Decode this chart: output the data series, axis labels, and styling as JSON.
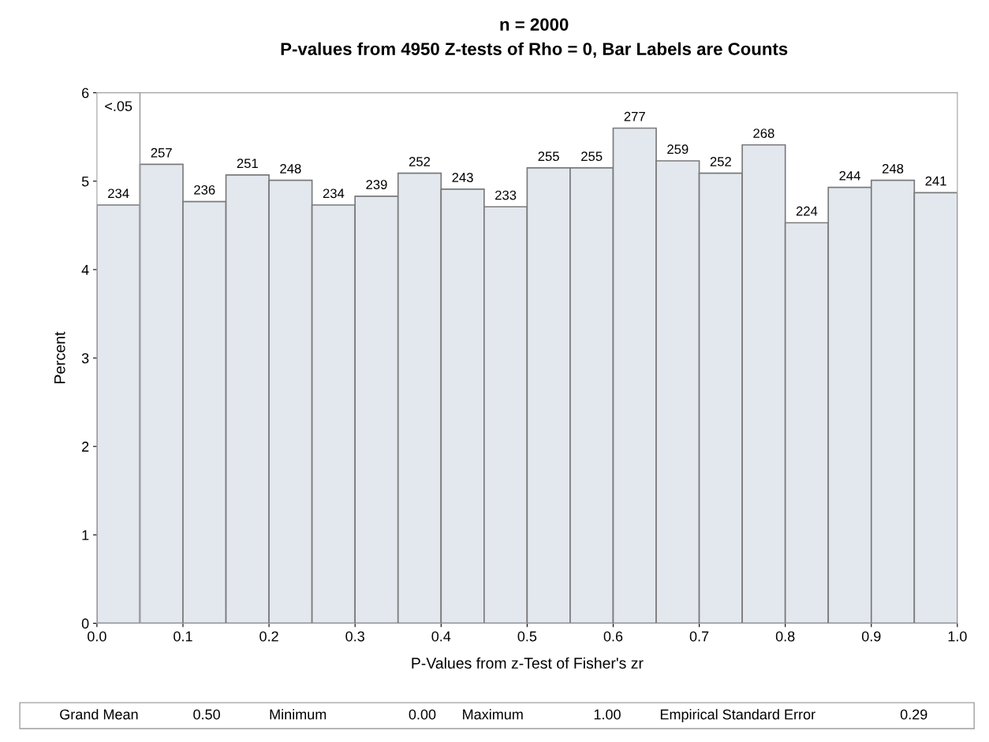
{
  "chart_data": {
    "type": "histogram",
    "title": "n = 2000",
    "subtitle": "P-values from 4950 Z-tests of Rho = 0, Bar Labels are Counts",
    "xlabel": "P-Values from z-Test of Fisher's zr",
    "ylabel": "Percent",
    "bins": [
      0.0,
      0.05,
      0.1,
      0.15,
      0.2,
      0.25,
      0.3,
      0.35,
      0.4,
      0.45,
      0.5,
      0.55,
      0.6,
      0.65,
      0.7,
      0.75,
      0.8,
      0.85,
      0.9,
      0.95,
      1.0
    ],
    "values": [
      4.73,
      5.19,
      4.77,
      5.07,
      5.01,
      4.73,
      4.83,
      5.09,
      4.91,
      4.71,
      5.15,
      5.15,
      5.6,
      5.23,
      5.09,
      5.41,
      4.53,
      4.93,
      5.01,
      4.87
    ],
    "color": "#e3e8ef",
    "xlim": [
      0.0,
      1.0
    ],
    "xticks": [
      {
        "value": 0.0,
        "label": "0.0"
      },
      0.1,
      0.2,
      0.3,
      0.4,
      0.5,
      0.6,
      0.7,
      0.8,
      0.9,
      {
        "value": 1.0,
        "label": "1.0"
      }
    ],
    "ylim": [
      0,
      6
    ],
    "yticks": [
      0,
      1,
      2,
      3,
      4,
      5,
      6
    ],
    "ref_lines": [
      {
        "axis": "x",
        "value": 0.05,
        "label": "<.05",
        "color": "#a0a0a0"
      }
    ],
    "grid": false,
    "annotations": [
      {
        "text": "234",
        "x": 0.025,
        "y": 4.73
      },
      {
        "text": "257",
        "x": 0.075,
        "y": 5.19
      },
      {
        "text": "236",
        "x": 0.125,
        "y": 4.77
      },
      {
        "text": "251",
        "x": 0.175,
        "y": 5.07
      },
      {
        "text": "248",
        "x": 0.225,
        "y": 5.01
      },
      {
        "text": "234",
        "x": 0.275,
        "y": 4.73
      },
      {
        "text": "239",
        "x": 0.325,
        "y": 4.83
      },
      {
        "text": "252",
        "x": 0.375,
        "y": 5.09
      },
      {
        "text": "243",
        "x": 0.425,
        "y": 4.91
      },
      {
        "text": "233",
        "x": 0.475,
        "y": 4.71
      },
      {
        "text": "255",
        "x": 0.525,
        "y": 5.15
      },
      {
        "text": "255",
        "x": 0.575,
        "y": 5.15
      },
      {
        "text": "277",
        "x": 0.625,
        "y": 5.6
      },
      {
        "text": "259",
        "x": 0.675,
        "y": 5.23
      },
      {
        "text": "252",
        "x": 0.725,
        "y": 5.09
      },
      {
        "text": "268",
        "x": 0.775,
        "y": 5.41
      },
      {
        "text": "224",
        "x": 0.825,
        "y": 4.53
      },
      {
        "text": "244",
        "x": 0.875,
        "y": 4.93
      },
      {
        "text": "248",
        "x": 0.925,
        "y": 5.01
      },
      {
        "text": "241",
        "x": 0.975,
        "y": 4.87
      },
      "Grand Mean",
      "0.50",
      "Minimum",
      "0.00",
      "Maximum",
      "1.00",
      "Empirical Standard Error",
      "0.29"
    ]
  }
}
